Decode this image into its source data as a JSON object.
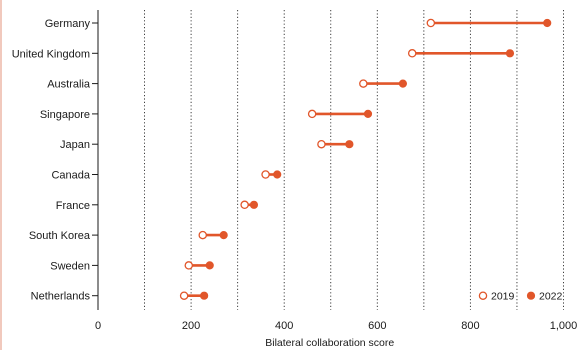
{
  "chart_data": {
    "type": "dumbbell",
    "title": "",
    "xlabel": "Bilateral collaboration score",
    "ylabel": "",
    "xlim": [
      0,
      1000
    ],
    "xticks": [
      0,
      200,
      400,
      600,
      800,
      1000
    ],
    "xtick_labels": [
      "0",
      "200",
      "400",
      "600",
      "800",
      "1,000"
    ],
    "grid": "vertical dotted lines at every 100",
    "legend_position": "bottom-right",
    "colors": {
      "accent": "#e1562a",
      "axis": "#1a1a1a",
      "grid": "#2a2a2a"
    },
    "categories": [
      "Germany",
      "United Kingdom",
      "Australia",
      "Singapore",
      "Japan",
      "Canada",
      "France",
      "South Korea",
      "Sweden",
      "Netherlands"
    ],
    "series": [
      {
        "name": "2019",
        "marker": "open-circle",
        "values": [
          715,
          675,
          570,
          460,
          480,
          360,
          315,
          225,
          195,
          185
        ]
      },
      {
        "name": "2022",
        "marker": "filled-circle",
        "values": [
          965,
          885,
          655,
          580,
          540,
          385,
          335,
          270,
          240,
          228
        ]
      }
    ]
  }
}
